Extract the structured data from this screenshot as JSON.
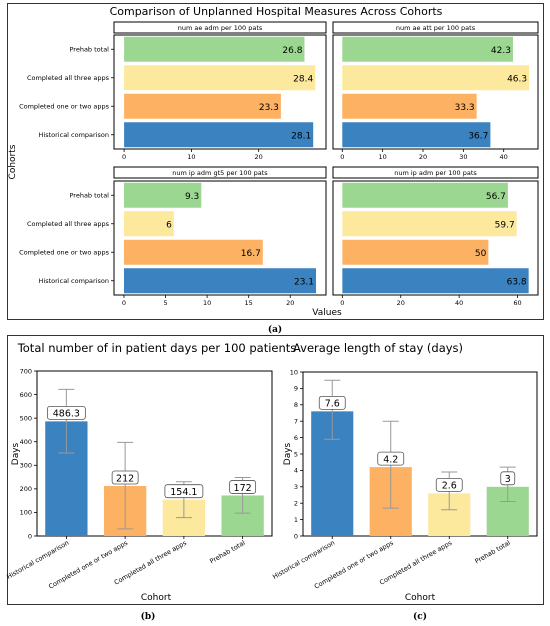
{
  "colors": {
    "Historical comparison": "#3a82c0",
    "Completed one or two apps": "#fdb163",
    "Completed all three apps": "#fce99d",
    "Prehab total": "#9cd792"
  },
  "captions": {
    "a": "(a)",
    "b": "(b)",
    "c": "(c)"
  },
  "chart_data": [
    {
      "id": "a",
      "type": "bar",
      "orientation": "horizontal",
      "title": "Comparison of Unplanned Hospital Measures Across Cohorts",
      "xlabel": "Values",
      "ylabel": "Cohorts",
      "categories": [
        "Prehab total",
        "Completed all three apps",
        "Completed one or two apps",
        "Historical comparison"
      ],
      "panels": [
        {
          "title": "num ae adm per 100 pats",
          "values": [
            26.8,
            28.4,
            23.3,
            28.1
          ],
          "xlim": [
            -1.5,
            30
          ],
          "xticks": [
            0,
            10,
            20
          ]
        },
        {
          "title": "num ae att per 100 pats",
          "values": [
            42.3,
            46.3,
            33.3,
            36.7
          ],
          "xlim": [
            -2.3,
            48.5
          ],
          "xticks": [
            0,
            10,
            20,
            30,
            40
          ]
        },
        {
          "title": "num ip adm gt5 per 100 pats",
          "values": [
            9.3,
            6,
            16.7,
            23.1
          ],
          "xlim": [
            -1.2,
            24.3
          ],
          "xticks": [
            0,
            5,
            10,
            15,
            20
          ]
        },
        {
          "title": "num ip adm per 100 pats",
          "values": [
            56.7,
            59.7,
            50,
            63.8
          ],
          "xlim": [
            -3.2,
            67
          ],
          "xticks": [
            0,
            20,
            40,
            60
          ]
        }
      ]
    },
    {
      "id": "b",
      "type": "bar",
      "title": "Total number of in patient days per 100 patients",
      "xlabel": "Cohort",
      "ylabel": "Days",
      "categories": [
        "Historical comparison",
        "Completed one or two apps",
        "Completed all three apps",
        "Prehab total"
      ],
      "values": [
        486.3,
        212,
        154.1,
        172
      ],
      "error_bars": [
        [
          352,
          622
        ],
        [
          30,
          397
        ],
        [
          78,
          230
        ],
        [
          97,
          248
        ]
      ],
      "ylim": [
        0,
        700
      ],
      "yticks": [
        0,
        100,
        200,
        300,
        400,
        500,
        600,
        700
      ]
    },
    {
      "id": "c",
      "type": "bar",
      "title": "Average length of stay (days)",
      "xlabel": "Cohort",
      "ylabel": "Days",
      "categories": [
        "Historical comparison",
        "Completed one or two apps",
        "Completed all three apps",
        "Prehab total"
      ],
      "values": [
        7.6,
        4.2,
        2.6,
        3
      ],
      "error_bars": [
        [
          5.9,
          9.5
        ],
        [
          1.7,
          7
        ],
        [
          1.6,
          3.9
        ],
        [
          2.1,
          4.2
        ]
      ],
      "ylim": [
        0,
        10
      ],
      "yticks": [
        0,
        1,
        2,
        3,
        4,
        5,
        6,
        7,
        8,
        9,
        10
      ]
    }
  ]
}
